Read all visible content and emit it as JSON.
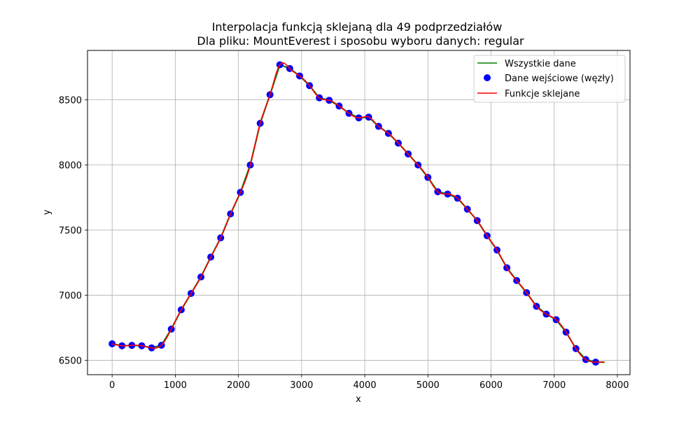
{
  "chart_data": {
    "type": "line",
    "title": "Interpolacja funkcją sklejaną dla 49 podprzedziałów",
    "subtitle": "Dla pliku: MountEverest i sposobu wyboru danych: regular",
    "xlabel": "x",
    "ylabel": "y",
    "xlim": [
      -390,
      8200
    ],
    "ylim": [
      6390,
      8880
    ],
    "x_ticks": [
      0,
      1000,
      2000,
      3000,
      4000,
      5000,
      6000,
      7000,
      8000
    ],
    "y_ticks": [
      6500,
      7000,
      7500,
      8000,
      8500
    ],
    "grid": true,
    "legend_position": "upper right",
    "legend": [
      "Wszystkie dane",
      "Dane wejściowe (węzły)",
      "Funkcje sklejane"
    ],
    "colors": {
      "all_data": "#008000",
      "nodes": "#0000ff",
      "spline": "#ff0000",
      "grid": "#b0b0b0",
      "axes": "#000000"
    },
    "series": [
      {
        "name": "Dane wejściowe (węzły)",
        "style": "markers",
        "x": [
          0,
          156,
          312,
          469,
          625,
          781,
          937,
          1094,
          1250,
          1406,
          1562,
          1719,
          1875,
          2031,
          2187,
          2344,
          2500,
          2656,
          2812,
          2969,
          3125,
          3281,
          3437,
          3594,
          3750,
          3906,
          4062,
          4219,
          4375,
          4531,
          4687,
          4844,
          5000,
          5156,
          5312,
          5469,
          5625,
          5781,
          5937,
          6094,
          6250,
          6406,
          6562,
          6719,
          6875,
          7031,
          7187,
          7344,
          7500,
          7656
        ],
        "y": [
          6627,
          6612,
          6615,
          6612,
          6596,
          6616,
          6740,
          6888,
          7014,
          7140,
          7293,
          7441,
          7625,
          7790,
          8000,
          8320,
          8540,
          8770,
          8741,
          8684,
          8610,
          8516,
          8497,
          8453,
          8397,
          8362,
          8368,
          8297,
          8243,
          8168,
          8085,
          8000,
          7905,
          7795,
          7777,
          7745,
          7661,
          7573,
          7457,
          7347,
          7211,
          7113,
          7020,
          6915,
          6855,
          6812,
          6717,
          6590,
          6506,
          6486
        ]
      }
    ]
  }
}
